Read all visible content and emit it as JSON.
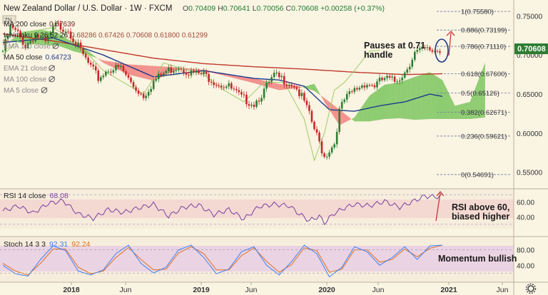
{
  "header": {
    "title": "New Zealand Dollar / U.S. Dollar · 1W · FXCM",
    "ohlc": [
      {
        "k": "O",
        "v": "0.70409"
      },
      {
        "k": "H",
        "v": "0.70641"
      },
      {
        "k": "L",
        "v": "0.70056"
      },
      {
        "k": "C",
        "v": "0.70608"
      }
    ],
    "change": "+0.00258 (+0.37%)",
    "flag_text": "ZN"
  },
  "legend": [
    {
      "label": "MA 200 close",
      "value": "0.67639",
      "color": "#6b2a2a"
    },
    {
      "label": "Ichimoku 9 26 52 26",
      "value": "0.68286  0.67426  0.70608  0.61800  0.61299",
      "color": "#a34b3a"
    },
    {
      "label": "EMA 110 close",
      "value": "",
      "color": "#8a8a8a"
    },
    {
      "label": "MA 50 close",
      "value": "0.64723",
      "color": "#1f3a8a"
    },
    {
      "label": "EMA 21 close",
      "value": "",
      "color": "#8a8a8a"
    },
    {
      "label": "MA 100 close",
      "value": "",
      "color": "#8a8a8a"
    },
    {
      "label": "MA 5 close",
      "value": "",
      "color": "#8a8a8a"
    }
  ],
  "colors": {
    "up": "#2e7d32",
    "down": "#c62828",
    "ma200": "#c0392b",
    "ma50": "#1f3a8a",
    "chikou": "#9ccc65",
    "cloud_bull": "#6abf4b",
    "cloud_bear": "#f07070",
    "rsi": "#7b3fa0",
    "stoch_k": "#3b82f6",
    "stoch_d": "#e07020",
    "price_tag": "#2e7d32",
    "annotation": "#c62828"
  },
  "chart_data": [
    {
      "type": "candlestick",
      "panel": "price",
      "ylim": [
        0.535,
        0.765
      ],
      "yticks": [
        "0.75000",
        "0.70000",
        "0.65000",
        "0.60000",
        "0.55000"
      ],
      "last_price": "0.70608",
      "fib_levels": [
        {
          "label": "1(0.75580)",
          "value": 0.7558
        },
        {
          "label": "0.886(0.73199)",
          "value": 0.73199
        },
        {
          "label": "0.786(0.71110)",
          "value": 0.7111
        },
        {
          "label": "0.618(0.67600)",
          "value": 0.676
        },
        {
          "label": "0.5(0.65126)",
          "value": 0.65126
        },
        {
          "label": "0.382(0.62671)",
          "value": 0.62671
        },
        {
          "label": "0.236(0.59621)",
          "value": 0.59621
        },
        {
          "label": "0(0.54691)",
          "value": 0.54691
        }
      ],
      "annotation": [
        "Pauses at 0.71",
        "handle"
      ],
      "series_anchors": [
        {
          "name": "close",
          "x": [
            0,
            3,
            6,
            9,
            13,
            17,
            21,
            26,
            30,
            34,
            38,
            42,
            47,
            52,
            56,
            60,
            65,
            70,
            75,
            80,
            85,
            90,
            95,
            100,
            104,
            108,
            112,
            116,
            120,
            124,
            128,
            132,
            134,
            136,
            140,
            144,
            148,
            152,
            156,
            160,
            164,
            168,
            172,
            174
          ],
          "y": [
            0.705,
            0.735,
            0.727,
            0.712,
            0.726,
            0.715,
            0.738,
            0.733,
            0.71,
            0.689,
            0.67,
            0.682,
            0.683,
            0.66,
            0.648,
            0.666,
            0.679,
            0.686,
            0.677,
            0.675,
            0.665,
            0.659,
            0.645,
            0.638,
            0.654,
            0.673,
            0.668,
            0.662,
            0.64,
            0.605,
            0.57,
            0.587,
            0.628,
            0.642,
            0.655,
            0.664,
            0.661,
            0.67,
            0.666,
            0.678,
            0.703,
            0.706,
            0.706,
            0.706
          ]
        },
        {
          "name": "ma200",
          "x": [
            0,
            20,
            40,
            60,
            80,
            100,
            120,
            140,
            160,
            175
          ],
          "y": [
            0.727,
            0.718,
            0.707,
            0.696,
            0.689,
            0.685,
            0.682,
            0.678,
            0.675,
            0.676
          ]
        },
        {
          "name": "ma50",
          "x": [
            0,
            20,
            40,
            60,
            80,
            100,
            110,
            120,
            130,
            140,
            150,
            160,
            170,
            175
          ],
          "y": [
            0.716,
            0.722,
            0.7,
            0.672,
            0.68,
            0.67,
            0.668,
            0.66,
            0.63,
            0.628,
            0.635,
            0.64,
            0.65,
            0.647
          ]
        },
        {
          "name": "chikou",
          "x": [
            0,
            10,
            20,
            30,
            40,
            48,
            56,
            64,
            72,
            80,
            88,
            96,
            104,
            112,
            120,
            124,
            128,
            132,
            136,
            140,
            146,
            150
          ],
          "y": [
            0.7,
            0.73,
            0.735,
            0.715,
            0.68,
            0.665,
            0.65,
            0.69,
            0.682,
            0.675,
            0.655,
            0.64,
            0.665,
            0.665,
            0.618,
            0.565,
            0.6,
            0.655,
            0.665,
            0.68,
            0.705,
            0.706
          ]
        }
      ],
      "cloud_anchors": {
        "x": [
          0,
          8,
          16,
          22,
          28,
          34,
          40,
          50,
          60,
          70,
          80,
          90,
          100,
          110,
          118,
          124,
          128,
          134,
          140,
          146,
          152,
          158,
          164,
          170,
          175,
          180,
          186,
          192
        ],
        "span_a": [
          0.712,
          0.73,
          0.732,
          0.728,
          0.716,
          0.705,
          0.69,
          0.675,
          0.667,
          0.682,
          0.68,
          0.672,
          0.664,
          0.655,
          0.658,
          0.663,
          0.64,
          0.61,
          0.62,
          0.648,
          0.662,
          0.665,
          0.672,
          0.678,
          0.668,
          0.635,
          0.64,
          0.69
        ],
        "span_b": [
          0.72,
          0.715,
          0.713,
          0.712,
          0.705,
          0.7,
          0.693,
          0.688,
          0.686,
          0.684,
          0.681,
          0.675,
          0.67,
          0.663,
          0.66,
          0.654,
          0.645,
          0.63,
          0.615,
          0.615,
          0.618,
          0.619,
          0.617,
          0.618,
          0.618,
          0.618,
          0.618,
          0.62
        ]
      }
    },
    {
      "type": "line",
      "panel": "rsi",
      "title": "RSI 14 close",
      "value": "68.08",
      "ylim": [
        25,
        75
      ],
      "yticks": [
        "60.00",
        "40.00"
      ],
      "x": [
        0,
        6,
        12,
        18,
        24,
        30,
        36,
        42,
        48,
        54,
        60,
        66,
        72,
        78,
        84,
        90,
        96,
        102,
        108,
        114,
        118,
        122,
        126,
        128,
        132,
        136,
        140,
        146,
        152,
        158,
        164,
        168,
        172,
        175
      ],
      "values": [
        48,
        55,
        45,
        58,
        62,
        44,
        38,
        50,
        46,
        52,
        57,
        41,
        53,
        56,
        43,
        50,
        37,
        54,
        57,
        55,
        44,
        35,
        41,
        32,
        45,
        52,
        57,
        55,
        61,
        53,
        62,
        68,
        67,
        68
      ],
      "annotation": [
        "RSI above 60,",
        "biased higher"
      ]
    },
    {
      "type": "line",
      "panel": "stoch",
      "title": "Stoch 14 3 3",
      "k_value": "92.31",
      "d_value": "92.24",
      "ylim": [
        0,
        105
      ],
      "yticks": [
        "80.00",
        "40.00"
      ],
      "x": [
        0,
        5,
        10,
        15,
        20,
        25,
        30,
        35,
        40,
        45,
        50,
        55,
        60,
        65,
        70,
        75,
        80,
        85,
        90,
        95,
        100,
        105,
        110,
        115,
        120,
        125,
        130,
        135,
        140,
        145,
        150,
        155,
        160,
        165,
        170,
        175
      ],
      "k": [
        40,
        18,
        12,
        55,
        90,
        78,
        25,
        15,
        28,
        70,
        92,
        45,
        20,
        35,
        80,
        92,
        60,
        18,
        30,
        75,
        88,
        40,
        15,
        50,
        92,
        70,
        10,
        35,
        88,
        75,
        40,
        60,
        88,
        55,
        90,
        92
      ],
      "d": [
        45,
        25,
        15,
        45,
        82,
        82,
        35,
        18,
        25,
        60,
        86,
        55,
        28,
        30,
        72,
        88,
        70,
        28,
        28,
        65,
        85,
        50,
        22,
        42,
        85,
        78,
        22,
        30,
        80,
        80,
        48,
        55,
        82,
        62,
        84,
        92
      ],
      "annotation": "Momentum bullish"
    }
  ],
  "xaxis": {
    "labels": [
      "2018",
      "Jun",
      "2019",
      "Jun",
      "2020",
      "Jun",
      "2021",
      "Jun"
    ]
  },
  "gear_label": "settings"
}
